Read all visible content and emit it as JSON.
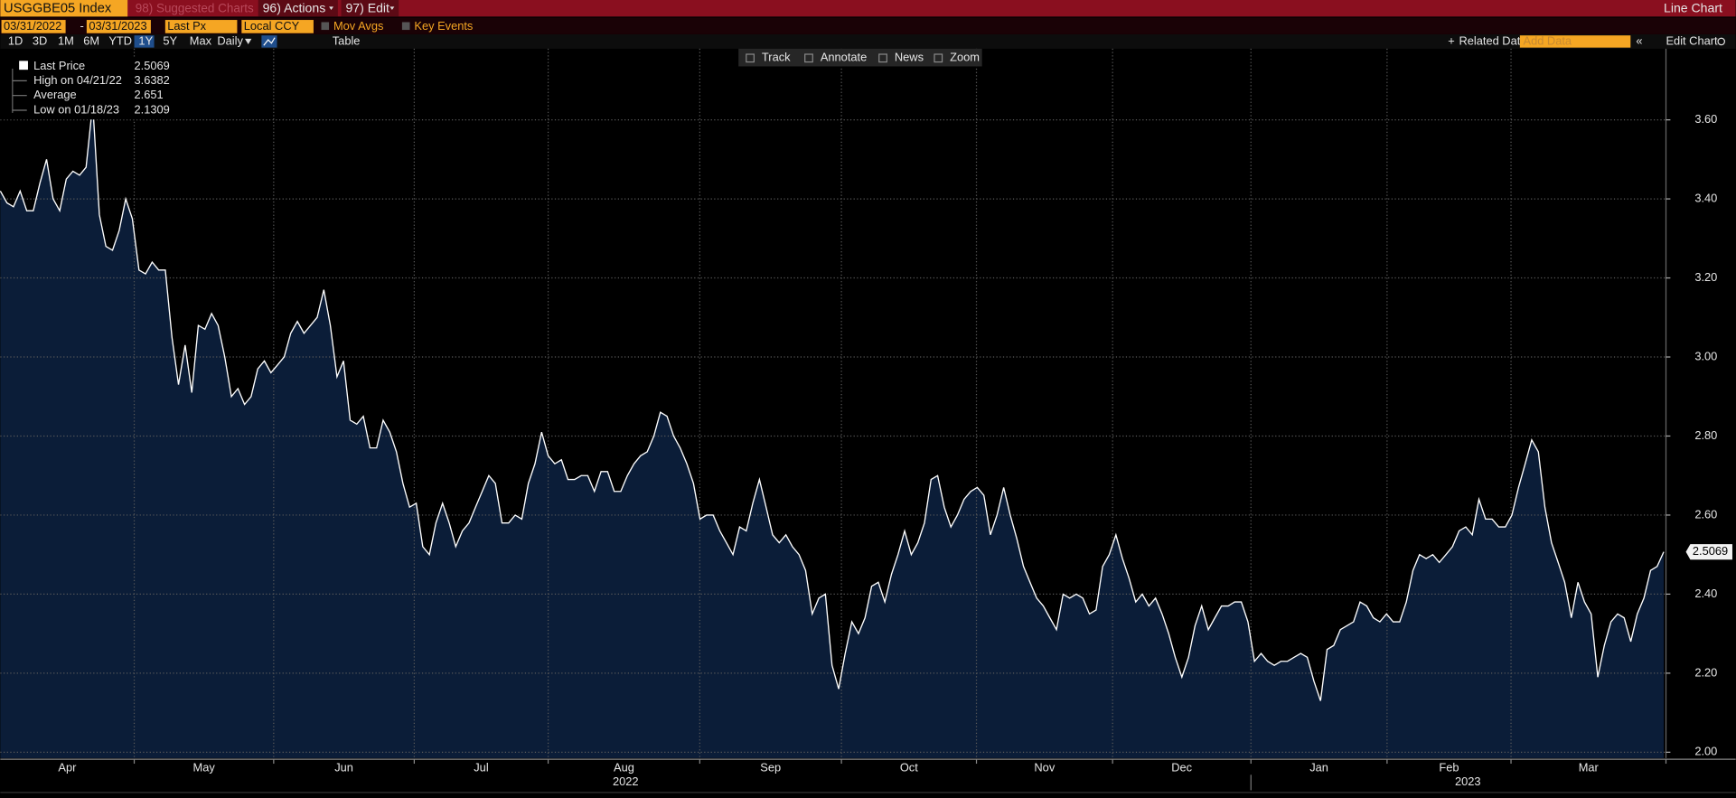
{
  "toolbar": {
    "ticker": "USGGBE05 Index",
    "suggested": "98) Suggested Charts",
    "actions": "96) Actions",
    "edit": "97) Edit",
    "view": "Line Chart"
  },
  "row2": {
    "start": "03/31/2022",
    "sep": "-",
    "end": "03/31/2023",
    "field": "Last Px",
    "currency": "Local CCY",
    "mov_avgs": "Mov Avgs",
    "key_events": "Key Events"
  },
  "row3": {
    "periods": [
      "1D",
      "3D",
      "1M",
      "6M",
      "YTD",
      "1Y",
      "5Y",
      "Max"
    ],
    "frequency": "Daily",
    "table": "Table",
    "related": "Related Dat",
    "add_data": "Add Data",
    "edit_chart": "Edit Chart"
  },
  "chart_tools": [
    "Track",
    "Annotate",
    "News",
    "Zoom"
  ],
  "chart_data": {
    "type": "line",
    "grid": true,
    "fill": "#0b1d38",
    "series": [
      {
        "name": "Last Price",
        "color": "#ffffff",
        "values": [
          3.42,
          3.39,
          3.38,
          3.42,
          3.37,
          3.37,
          3.44,
          3.5,
          3.4,
          3.37,
          3.45,
          3.47,
          3.46,
          3.48,
          3.64,
          3.36,
          3.28,
          3.27,
          3.32,
          3.4,
          3.35,
          3.22,
          3.21,
          3.24,
          3.22,
          3.22,
          3.05,
          2.93,
          3.03,
          2.91,
          3.08,
          3.07,
          3.11,
          3.08,
          3.0,
          2.9,
          2.92,
          2.88,
          2.9,
          2.97,
          2.99,
          2.96,
          2.98,
          3.0,
          3.06,
          3.09,
          3.06,
          3.08,
          3.1,
          3.17,
          3.08,
          2.95,
          2.99,
          2.84,
          2.83,
          2.85,
          2.77,
          2.77,
          2.84,
          2.81,
          2.76,
          2.68,
          2.62,
          2.63,
          2.52,
          2.5,
          2.58,
          2.63,
          2.58,
          2.52,
          2.56,
          2.58,
          2.62,
          2.66,
          2.7,
          2.68,
          2.58,
          2.58,
          2.6,
          2.59,
          2.68,
          2.73,
          2.81,
          2.75,
          2.73,
          2.74,
          2.69,
          2.69,
          2.7,
          2.7,
          2.66,
          2.71,
          2.71,
          2.66,
          2.66,
          2.7,
          2.73,
          2.75,
          2.76,
          2.8,
          2.86,
          2.85,
          2.8,
          2.77,
          2.73,
          2.68,
          2.59,
          2.6,
          2.6,
          2.56,
          2.53,
          2.5,
          2.57,
          2.56,
          2.63,
          2.69,
          2.62,
          2.55,
          2.53,
          2.55,
          2.52,
          2.5,
          2.46,
          2.35,
          2.39,
          2.4,
          2.22,
          2.16,
          2.25,
          2.33,
          2.3,
          2.34,
          2.42,
          2.43,
          2.38,
          2.45,
          2.5,
          2.56,
          2.5,
          2.53,
          2.58,
          2.69,
          2.7,
          2.62,
          2.57,
          2.6,
          2.64,
          2.66,
          2.67,
          2.65,
          2.55,
          2.6,
          2.67,
          2.6,
          2.54,
          2.47,
          2.43,
          2.39,
          2.37,
          2.34,
          2.31,
          2.4,
          2.39,
          2.4,
          2.39,
          2.35,
          2.36,
          2.47,
          2.5,
          2.55,
          2.49,
          2.44,
          2.38,
          2.4,
          2.37,
          2.39,
          2.35,
          2.3,
          2.24,
          2.19,
          2.24,
          2.32,
          2.37,
          2.31,
          2.34,
          2.37,
          2.37,
          2.38,
          2.38,
          2.33,
          2.23,
          2.25,
          2.23,
          2.22,
          2.23,
          2.23,
          2.24,
          2.25,
          2.24,
          2.18,
          2.13,
          2.26,
          2.27,
          2.31,
          2.32,
          2.33,
          2.38,
          2.37,
          2.34,
          2.33,
          2.35,
          2.33,
          2.33,
          2.38,
          2.46,
          2.5,
          2.49,
          2.5,
          2.48,
          2.5,
          2.52,
          2.56,
          2.57,
          2.55,
          2.64,
          2.59,
          2.59,
          2.57,
          2.57,
          2.6,
          2.67,
          2.73,
          2.79,
          2.76,
          2.62,
          2.53,
          2.48,
          2.43,
          2.34,
          2.43,
          2.38,
          2.35,
          2.19,
          2.27,
          2.33,
          2.35,
          2.34,
          2.28,
          2.35,
          2.39,
          2.46,
          2.47,
          2.5069
        ]
      }
    ],
    "stats": [
      {
        "label": "High on 04/21/22",
        "value": 3.6382
      },
      {
        "label": "Average",
        "value": 2.651
      },
      {
        "label": "Low on 01/18/23",
        "value": 2.1309
      }
    ],
    "ylim": [
      1.985,
      3.78
    ],
    "yticks": [
      {
        "value": 2,
        "label": "2.00"
      },
      {
        "value": 2.2,
        "label": "2.20"
      },
      {
        "value": 2.4,
        "label": "2.40"
      },
      {
        "value": 2.6,
        "label": "2.60"
      },
      {
        "value": 2.8,
        "label": "2.80"
      },
      {
        "value": 3,
        "label": "3.00"
      },
      {
        "value": 3.2,
        "label": "3.20"
      },
      {
        "value": 3.4,
        "label": "3.40"
      },
      {
        "value": 3.6,
        "label": "3.60"
      }
    ],
    "months": [
      "Apr",
      "May",
      "Jun",
      "Jul",
      "Aug",
      "Sep",
      "Oct",
      "Nov",
      "Dec",
      "Jan",
      "Feb",
      "Mar"
    ],
    "years": [
      "2022",
      "2023"
    ]
  }
}
